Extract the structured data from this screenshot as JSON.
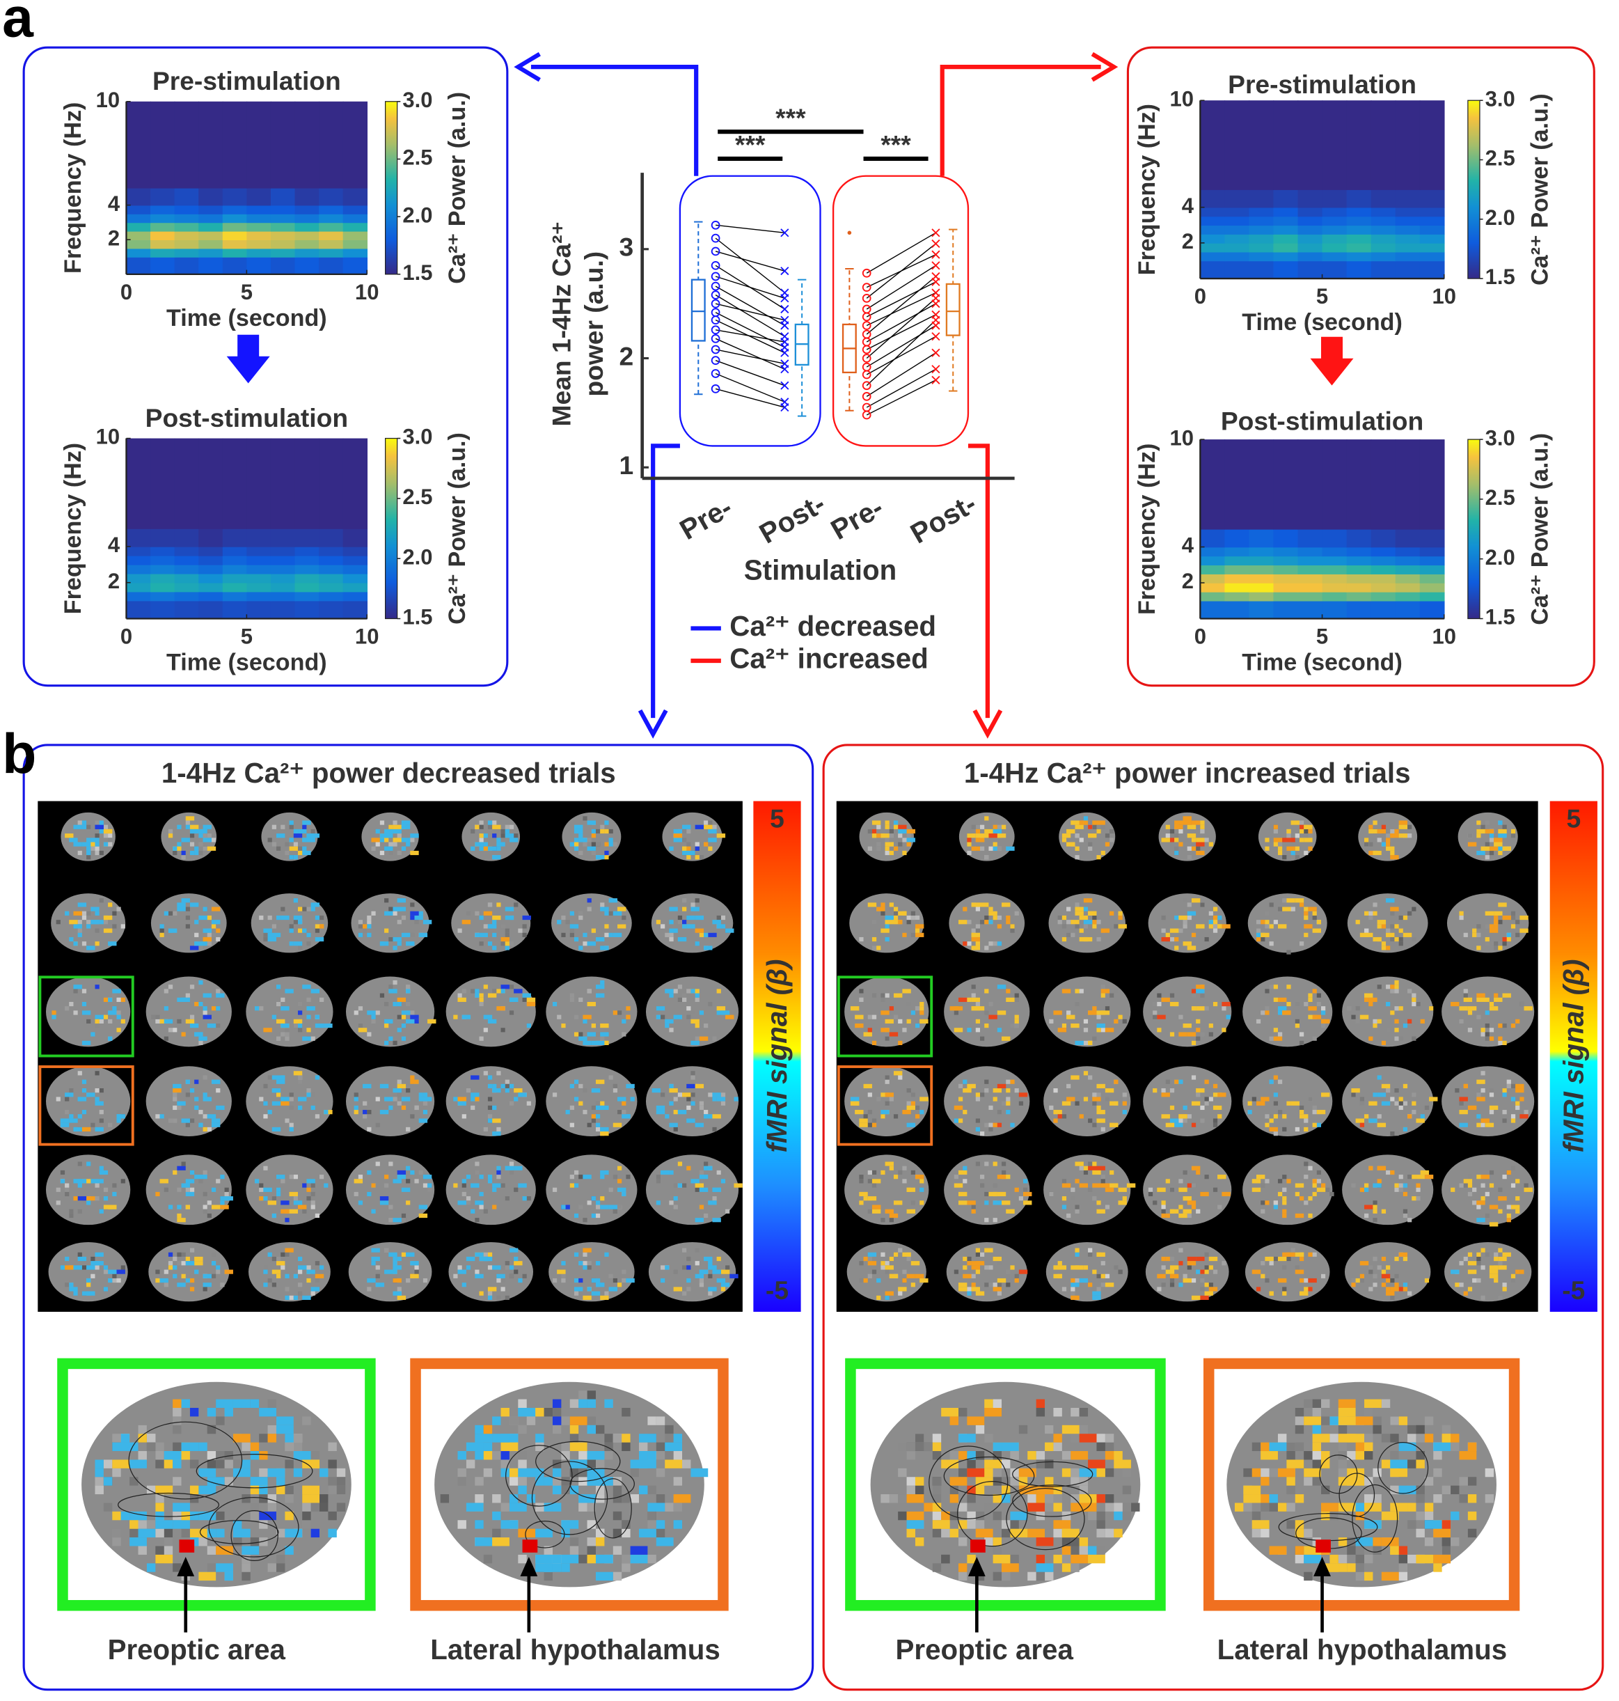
{
  "panel_labels": [
    "a",
    "b"
  ],
  "spectrograms": [
    {
      "title": "Pre-stimulation",
      "xlabel": "Time (second)",
      "ylabel": "Frequency (Hz)",
      "colorbar_label": "Ca²⁺ Power (a.u.)",
      "xlim": [
        0,
        10
      ],
      "xticks": [
        0,
        5,
        10
      ],
      "ylim": [
        0,
        10
      ],
      "yticks": [
        2,
        4,
        10
      ],
      "clim": [
        1.5,
        3
      ],
      "cticks": [
        1.5,
        {
          "value": 2,
          "label": "2.0"
        },
        2.5,
        {
          "value": 3,
          "label": "3.0"
        }
      ],
      "time_edges": [
        0,
        1,
        2,
        3,
        4,
        5,
        6,
        7,
        8,
        9,
        10
      ],
      "freq_edges": [
        0,
        1,
        1.5,
        2,
        2.5,
        3,
        3.5,
        4,
        5,
        10
      ],
      "power": [
        [
          1.75,
          1.8,
          1.75,
          1.8,
          1.75,
          1.8,
          1.75,
          1.8,
          1.75,
          1.8
        ],
        [
          2.1,
          2.25,
          2.2,
          2.15,
          2.3,
          2.2,
          2.25,
          2.15,
          2.2,
          2.1
        ],
        [
          2.55,
          2.75,
          2.7,
          2.6,
          2.8,
          2.75,
          2.7,
          2.6,
          2.7,
          2.55
        ],
        [
          2.6,
          2.85,
          2.75,
          2.7,
          2.9,
          2.8,
          2.75,
          2.7,
          2.8,
          2.6
        ],
        [
          2.3,
          2.45,
          2.4,
          2.3,
          2.5,
          2.45,
          2.4,
          2.3,
          2.4,
          2.3
        ],
        [
          1.95,
          2.05,
          2.0,
          1.95,
          2.1,
          2.0,
          2.0,
          1.95,
          2.05,
          1.95
        ],
        [
          1.75,
          1.85,
          1.8,
          1.75,
          1.85,
          1.8,
          1.8,
          1.75,
          1.85,
          1.75
        ],
        [
          1.6,
          1.65,
          1.7,
          1.6,
          1.65,
          1.6,
          1.7,
          1.6,
          1.65,
          1.6
        ],
        [
          1.5,
          1.5,
          1.5,
          1.5,
          1.5,
          1.5,
          1.5,
          1.5,
          1.5,
          1.5
        ]
      ]
    },
    {
      "title": "Post-stimulation",
      "xlabel": "Time (second)",
      "ylabel": "Frequency (Hz)",
      "colorbar_label": "Ca²⁺ Power (a.u.)",
      "xlim": [
        0,
        10
      ],
      "xticks": [
        0,
        5,
        10
      ],
      "ylim": [
        0,
        10
      ],
      "yticks": [
        2,
        4,
        10
      ],
      "clim": [
        1.5,
        3
      ],
      "cticks": [
        1.5,
        {
          "value": 2,
          "label": "2.0"
        },
        2.5,
        {
          "value": 3,
          "label": "3.0"
        }
      ],
      "time_edges": [
        0,
        1,
        2,
        3,
        4,
        5,
        6,
        7,
        8,
        9,
        10
      ],
      "freq_edges": [
        0,
        1,
        1.5,
        2,
        2.5,
        3,
        3.5,
        4,
        5,
        10
      ],
      "power": [
        [
          1.7,
          1.72,
          1.7,
          1.68,
          1.72,
          1.7,
          1.7,
          1.72,
          1.7,
          1.68
        ],
        [
          1.9,
          1.95,
          1.9,
          1.85,
          1.95,
          1.9,
          1.9,
          1.95,
          1.9,
          1.85
        ],
        [
          2.2,
          2.3,
          2.25,
          2.2,
          2.3,
          2.25,
          2.2,
          2.3,
          2.25,
          2.2
        ],
        [
          2.15,
          2.25,
          2.2,
          2.1,
          2.2,
          2.2,
          2.15,
          2.25,
          2.2,
          2.1
        ],
        [
          1.95,
          2.0,
          1.95,
          1.9,
          2.0,
          1.95,
          1.95,
          2.0,
          1.95,
          1.9
        ],
        [
          1.8,
          1.85,
          1.8,
          1.75,
          1.85,
          1.8,
          1.8,
          1.85,
          1.8,
          1.75
        ],
        [
          1.7,
          1.75,
          1.7,
          1.65,
          1.75,
          1.7,
          1.7,
          1.75,
          1.7,
          1.65
        ],
        [
          1.6,
          1.6,
          1.6,
          1.55,
          1.6,
          1.6,
          1.6,
          1.6,
          1.6,
          1.55
        ],
        [
          1.5,
          1.5,
          1.5,
          1.5,
          1.5,
          1.5,
          1.5,
          1.5,
          1.5,
          1.5
        ]
      ]
    },
    {
      "title": "Pre-stimulation",
      "xlabel": "Time (second)",
      "ylabel": "Frequency (Hz)",
      "colorbar_label": "Ca²⁺ Power (a.u.)",
      "xlim": [
        0,
        10
      ],
      "xticks": [
        0,
        5,
        10
      ],
      "ylim": [
        0,
        10
      ],
      "yticks": [
        2,
        4,
        10
      ],
      "clim": [
        1.5,
        3
      ],
      "cticks": [
        1.5,
        {
          "value": 2,
          "label": "2.0"
        },
        2.5,
        {
          "value": 3,
          "label": "3.0"
        }
      ],
      "time_edges": [
        0,
        1,
        2,
        3,
        4,
        5,
        6,
        7,
        8,
        9,
        10
      ],
      "freq_edges": [
        0,
        1,
        1.5,
        2,
        2.5,
        3,
        3.5,
        4,
        5,
        10
      ],
      "power": [
        [
          1.75,
          1.75,
          1.75,
          1.8,
          1.75,
          1.75,
          1.8,
          1.75,
          1.75,
          1.75
        ],
        [
          1.95,
          1.95,
          2.0,
          2.05,
          1.95,
          2.0,
          2.05,
          2.0,
          1.95,
          1.95
        ],
        [
          2.2,
          2.2,
          2.25,
          2.35,
          2.2,
          2.3,
          2.35,
          2.25,
          2.2,
          2.2
        ],
        [
          2.1,
          2.15,
          2.2,
          2.3,
          2.15,
          2.25,
          2.3,
          2.2,
          2.15,
          2.1
        ],
        [
          1.95,
          1.95,
          2.0,
          2.05,
          1.95,
          2.0,
          2.05,
          2.0,
          1.95,
          1.9
        ],
        [
          1.8,
          1.8,
          1.85,
          1.9,
          1.8,
          1.85,
          1.9,
          1.85,
          1.8,
          1.8
        ],
        [
          1.7,
          1.7,
          1.75,
          1.8,
          1.7,
          1.75,
          1.8,
          1.75,
          1.7,
          1.7
        ],
        [
          1.6,
          1.6,
          1.6,
          1.65,
          1.6,
          1.6,
          1.65,
          1.6,
          1.6,
          1.6
        ],
        [
          1.5,
          1.5,
          1.5,
          1.5,
          1.5,
          1.5,
          1.5,
          1.5,
          1.5,
          1.5
        ]
      ]
    },
    {
      "title": "Post-stimulation",
      "xlabel": "Time (second)",
      "ylabel": "Frequency (Hz)",
      "colorbar_label": "Ca²⁺ Power (a.u.)",
      "xlim": [
        0,
        10
      ],
      "xticks": [
        0,
        5,
        10
      ],
      "ylim": [
        0,
        10
      ],
      "yticks": [
        2,
        4,
        10
      ],
      "clim": [
        1.5,
        3
      ],
      "cticks": [
        1.5,
        {
          "value": 2,
          "label": "2.0"
        },
        2.5,
        {
          "value": 3,
          "label": "3.0"
        }
      ],
      "time_edges": [
        0,
        1,
        2,
        3,
        4,
        5,
        6,
        7,
        8,
        9,
        10
      ],
      "freq_edges": [
        0,
        1,
        1.5,
        2,
        2.5,
        3,
        3.5,
        4,
        5,
        10
      ],
      "power": [
        [
          1.9,
          1.9,
          1.95,
          1.9,
          1.9,
          1.9,
          1.85,
          1.85,
          1.85,
          1.8
        ],
        [
          2.5,
          2.55,
          2.6,
          2.5,
          2.5,
          2.45,
          2.5,
          2.45,
          2.4,
          2.35
        ],
        [
          2.85,
          2.95,
          2.95,
          2.85,
          2.85,
          2.8,
          2.8,
          2.75,
          2.7,
          2.6
        ],
        [
          2.75,
          2.85,
          2.85,
          2.8,
          2.8,
          2.75,
          2.7,
          2.7,
          2.6,
          2.5
        ],
        [
          2.4,
          2.5,
          2.5,
          2.45,
          2.4,
          2.4,
          2.35,
          2.3,
          2.25,
          2.2
        ],
        [
          2.1,
          2.2,
          2.2,
          2.15,
          2.1,
          2.1,
          2.05,
          2.0,
          1.95,
          1.9
        ],
        [
          1.95,
          2.0,
          2.05,
          2.0,
          1.95,
          1.9,
          1.85,
          1.8,
          1.75,
          1.7
        ],
        [
          1.75,
          1.8,
          1.85,
          1.8,
          1.75,
          1.75,
          1.7,
          1.65,
          1.6,
          1.6
        ],
        [
          1.5,
          1.5,
          1.5,
          1.5,
          1.5,
          1.5,
          1.5,
          1.5,
          1.5,
          1.5
        ]
      ]
    }
  ],
  "chart_data": {
    "type": "box",
    "ylabel": [
      "Mean 1-4Hz Ca²⁺",
      "power (a.u.)"
    ],
    "xlabel": "Stimulation",
    "categories": [
      "Pre-",
      "Post-",
      "Pre-",
      "Post-"
    ],
    "ylim": [
      0.9,
      3.7
    ],
    "yticks": [
      1,
      2,
      3
    ],
    "boxes": [
      {
        "whislo": 1.67,
        "q1": 2.16,
        "med": 2.43,
        "q3": 2.72,
        "whishi": 3.25,
        "color": "#1f6fd6"
      },
      {
        "whislo": 1.47,
        "q1": 1.94,
        "med": 2.13,
        "q3": 2.31,
        "whishi": 2.72,
        "color": "#1e90d8"
      },
      {
        "whislo": 1.52,
        "q1": 1.87,
        "med": 2.09,
        "q3": 2.31,
        "whishi": 2.82,
        "color": "#e0601c",
        "outliers": [
          3.15
        ]
      },
      {
        "whislo": 1.7,
        "q1": 2.21,
        "med": 2.43,
        "q3": 2.68,
        "whishi": 3.18,
        "color": "#e07a22"
      }
    ],
    "series": [
      {
        "name": "Ca²⁺ decreased",
        "color": "#1414ff",
        "pre": [
          3.22,
          3.1,
          2.98,
          2.85,
          2.75,
          2.66,
          2.58,
          2.5,
          2.42,
          2.35,
          2.26,
          2.18,
          2.08,
          1.98,
          1.86,
          1.72
        ],
        "post": [
          3.15,
          2.6,
          2.8,
          2.45,
          2.55,
          2.3,
          2.2,
          2.35,
          2.1,
          2.05,
          2.15,
          1.9,
          1.95,
          1.75,
          1.6,
          1.55
        ]
      },
      {
        "name": "Ca²⁺ increased",
        "color": "#ff1414",
        "pre": [
          2.78,
          2.65,
          2.55,
          2.45,
          2.38,
          2.3,
          2.22,
          2.15,
          2.08,
          2.0,
          1.92,
          1.85,
          1.75,
          1.65,
          1.55,
          1.48
        ],
        "post": [
          3.15,
          2.95,
          3.05,
          2.85,
          2.7,
          2.6,
          2.75,
          2.5,
          2.4,
          2.55,
          2.3,
          2.2,
          2.35,
          2.05,
          1.9,
          1.8
        ]
      }
    ],
    "significance": [
      "***",
      "***",
      "***"
    ]
  },
  "panel_b": {
    "panels": [
      {
        "title": "1-4Hz Ca²⁺ power decreased trials",
        "colorbar_label": "fMRI signal (β)",
        "clim": [
          -5,
          5
        ],
        "cticks": [
          5,
          -5
        ],
        "regions": [
          "Preoptic area",
          "Lateral hypothalamus"
        ]
      },
      {
        "title": "1-4Hz Ca²⁺ power increased trials",
        "colorbar_label": "fMRI signal (β)",
        "clim": [
          -5,
          5
        ],
        "cticks": [
          5,
          -5
        ],
        "regions": [
          "Preoptic area",
          "Lateral hypothalamus"
        ]
      }
    ]
  }
}
